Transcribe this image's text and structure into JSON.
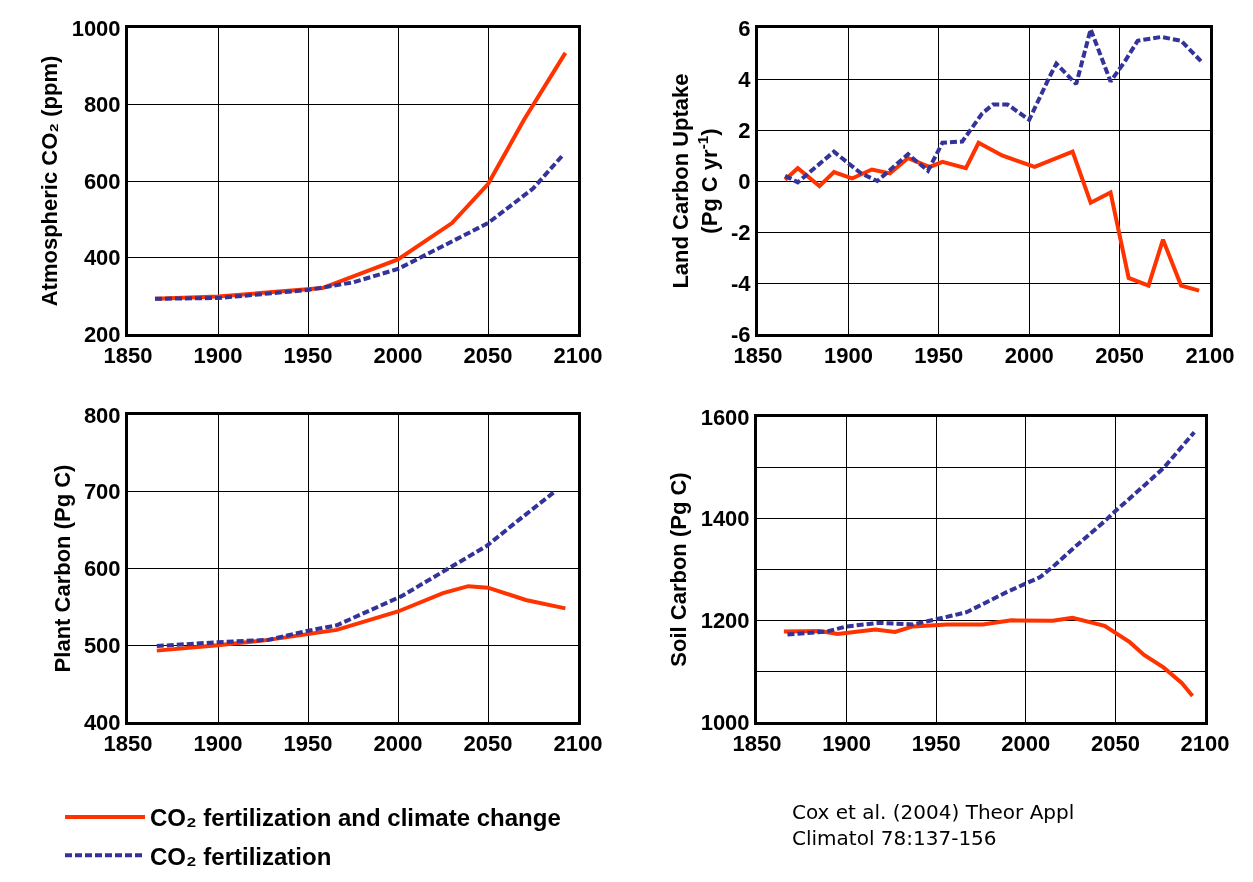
{
  "chart_data": [
    {
      "type": "line",
      "ylabel": "Atmospheric CO₂ (ppm)",
      "xlim": [
        1850,
        2100
      ],
      "xticks": [
        1850,
        1900,
        1950,
        2000,
        2050,
        2100
      ],
      "ylim": [
        200,
        1000
      ],
      "yticks": [
        200,
        400,
        600,
        800,
        1000
      ],
      "grid": true,
      "legend": "bottom",
      "series": [
        {
          "name": "CO₂ fertilization and climate change",
          "color": "#ff3300",
          "line_style": "solid",
          "x": [
            1865,
            1900,
            1958,
            2000,
            2030,
            2050,
            2070,
            2093
          ],
          "values": [
            292,
            298,
            320,
            395,
            490,
            592,
            760,
            935
          ]
        },
        {
          "name": "CO₂ fertilization",
          "color": "#333399",
          "line_style": "dashed",
          "x": [
            1865,
            1900,
            1950,
            1975,
            2000,
            2025,
            2050,
            2075,
            2092
          ],
          "values": [
            292,
            294,
            315,
            335,
            370,
            430,
            490,
            580,
            670
          ]
        }
      ]
    },
    {
      "type": "line",
      "ylabel": "Land Carbon Uptake\n(Pg C yr$^{-1}$)",
      "xlim": [
        1850,
        2100
      ],
      "xticks": [
        1850,
        1900,
        1950,
        2000,
        2050,
        2100
      ],
      "ylim": [
        -6,
        6
      ],
      "yticks": [
        -6,
        -4,
        -2,
        0,
        2,
        4,
        6
      ],
      "grid": true,
      "series": [
        {
          "color": "#ff3300",
          "line_style": "solid",
          "x": [
            1865,
            1872,
            1884,
            1892,
            1902,
            1913,
            1923,
            1933,
            1945,
            1952,
            1965,
            1972,
            1985,
            2003,
            2024,
            2034,
            2045,
            2055,
            2066,
            2074,
            2084,
            2094
          ],
          "values": [
            0.05,
            0.5,
            -0.2,
            0.35,
            0.1,
            0.45,
            0.3,
            0.9,
            0.55,
            0.75,
            0.5,
            1.5,
            1.0,
            0.55,
            1.15,
            -0.85,
            -0.45,
            -3.8,
            -4.1,
            -2.3,
            -4.1,
            -4.3
          ]
        },
        {
          "color": "#333399",
          "line_style": "dashed",
          "x": [
            1865,
            1872,
            1892,
            1907,
            1916,
            1933,
            1944,
            1952,
            1963,
            1974,
            1980,
            1988,
            2000,
            2011,
            2015,
            2026,
            2034,
            2045,
            2053,
            2060,
            2073,
            2084,
            2095
          ],
          "values": [
            0.2,
            -0.05,
            1.15,
            0.3,
            0.0,
            1.05,
            0.4,
            1.5,
            1.55,
            2.65,
            3.0,
            3.0,
            2.4,
            4.05,
            4.6,
            3.8,
            5.95,
            3.9,
            4.7,
            5.5,
            5.65,
            5.5,
            4.7
          ]
        }
      ]
    },
    {
      "type": "line",
      "ylabel": "Plant Carbon (Pg C)",
      "xlim": [
        1850,
        2100
      ],
      "xticks": [
        1850,
        1900,
        1950,
        2000,
        2050,
        2100
      ],
      "ylim": [
        400,
        800
      ],
      "yticks": [
        400,
        500,
        600,
        700,
        800
      ],
      "grid": true,
      "series": [
        {
          "color": "#ff3300",
          "line_style": "solid",
          "x": [
            1866,
            1900,
            1928,
            1966,
            2000,
            2025,
            2039,
            2050,
            2071,
            2093
          ],
          "values": [
            493,
            500,
            507,
            520,
            544,
            568,
            577,
            575,
            559,
            548
          ]
        },
        {
          "color": "#333399",
          "line_style": "dashed",
          "x": [
            1866,
            1900,
            1928,
            1948,
            1966,
            2002,
            2028,
            2049,
            2067,
            2087
          ],
          "values": [
            499,
            504,
            507,
            518,
            526,
            564,
            600,
            629,
            663,
            700
          ]
        }
      ]
    },
    {
      "type": "line",
      "ylabel": "Soil Carbon (Pg C)",
      "xlim": [
        1850,
        2100
      ],
      "xticks": [
        1850,
        1900,
        1950,
        2000,
        2050,
        2100
      ],
      "ylim": [
        1000,
        1600
      ],
      "yticks": [
        1000,
        {
          "value": 1100,
          "label": null
        },
        1200,
        {
          "value": 1300,
          "label": null
        },
        1400,
        {
          "value": 1500,
          "label": null
        },
        1600
      ],
      "grid": true,
      "annotations": [
        "Cox et al. (2004) Theor Appl\nClimatol 78:137-156"
      ],
      "series": [
        {
          "color": "#ff3300",
          "line_style": "solid",
          "x": [
            1865,
            1885,
            1895,
            1916,
            1927,
            1937,
            1956,
            1976,
            1992,
            2015,
            2026,
            2044,
            2058,
            2066,
            2077,
            2087,
            2093
          ],
          "values": [
            1178,
            1179,
            1173,
            1182,
            1177,
            1188,
            1192,
            1192,
            1200,
            1199,
            1205,
            1189,
            1157,
            1132,
            1107,
            1077,
            1051
          ]
        },
        {
          "color": "#333399",
          "line_style": "dashed",
          "x": [
            1867,
            1889,
            1900,
            1918,
            1937,
            1950,
            1967,
            1989,
            2008,
            2015,
            2026,
            2044,
            2050,
            2066,
            2077,
            2094
          ],
          "values": [
            1172,
            1178,
            1188,
            1195,
            1192,
            1202,
            1216,
            1255,
            1285,
            1305,
            1340,
            1395,
            1415,
            1465,
            1500,
            1570
          ]
        }
      ]
    }
  ]
}
